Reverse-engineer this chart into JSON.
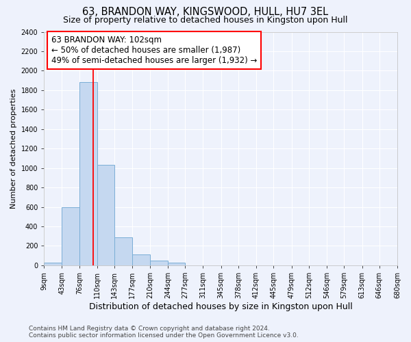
{
  "title": "63, BRANDON WAY, KINGSWOOD, HULL, HU7 3EL",
  "subtitle": "Size of property relative to detached houses in Kingston upon Hull",
  "xlabel": "Distribution of detached houses by size in Kingston upon Hull",
  "ylabel": "Number of detached properties",
  "bin_edges": [
    9,
    43,
    76,
    110,
    143,
    177,
    210,
    244,
    277,
    311,
    345,
    378,
    412,
    445,
    479,
    512,
    546,
    579,
    613,
    646,
    680
  ],
  "bin_counts": [
    25,
    600,
    1880,
    1030,
    285,
    115,
    50,
    25,
    0,
    0,
    0,
    0,
    0,
    0,
    0,
    0,
    0,
    0,
    0,
    0
  ],
  "bar_color": "#c5d8f0",
  "bar_edge_color": "#7aaed6",
  "property_line_x": 102,
  "property_line_color": "red",
  "annotation_line1": "63 BRANDON WAY: 102sqm",
  "annotation_line2": "← 50% of detached houses are smaller (1,987)",
  "annotation_line3": "49% of semi-detached houses are larger (1,932) →",
  "annotation_box_color": "white",
  "annotation_box_edge_color": "red",
  "ylim": [
    0,
    2400
  ],
  "yticks": [
    0,
    200,
    400,
    600,
    800,
    1000,
    1200,
    1400,
    1600,
    1800,
    2000,
    2200,
    2400
  ],
  "background_color": "#eef2fc",
  "footer_line1": "Contains HM Land Registry data © Crown copyright and database right 2024.",
  "footer_line2": "Contains public sector information licensed under the Open Government Licence v3.0.",
  "title_fontsize": 10.5,
  "subtitle_fontsize": 9,
  "xlabel_fontsize": 9,
  "ylabel_fontsize": 8,
  "tick_label_fontsize": 7,
  "annotation_fontsize": 8.5,
  "footer_fontsize": 6.5
}
